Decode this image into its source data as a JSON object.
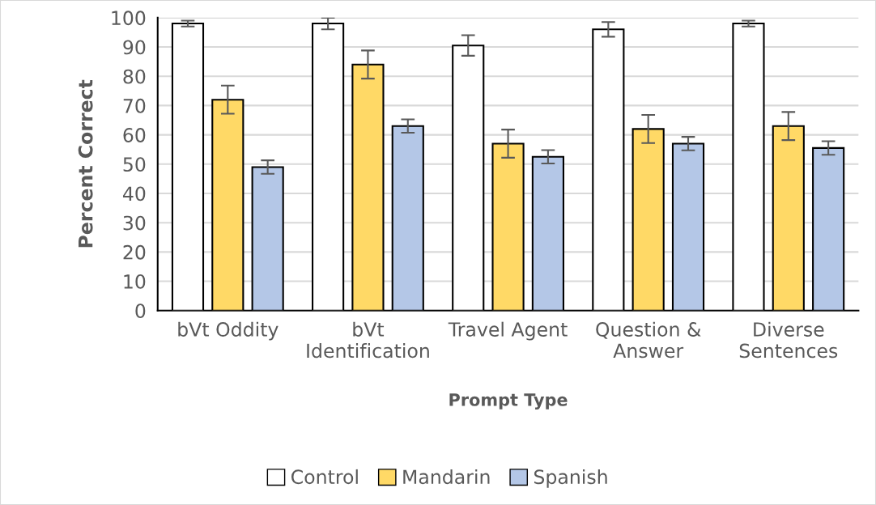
{
  "chart_data": {
    "type": "bar",
    "xlabel": "Prompt Type",
    "ylabel": "Percent Correct",
    "categories": [
      "bVt Oddity",
      "bVt\nIdentification",
      "Travel Agent",
      "Question &\nAnswer",
      "Diverse\nSentences"
    ],
    "series": [
      {
        "name": "Control",
        "color": "#ffffff",
        "values": [
          98,
          98,
          90.5,
          96,
          98
        ],
        "errors": [
          1,
          2,
          3.5,
          2.5,
          1
        ]
      },
      {
        "name": "Mandarin",
        "color": "#ffd966",
        "values": [
          72,
          84,
          57,
          62,
          63
        ],
        "errors": [
          4.8,
          4.8,
          4.8,
          4.8,
          4.8
        ]
      },
      {
        "name": "Spanish",
        "color": "#b4c7e7",
        "values": [
          49,
          63,
          52.5,
          57,
          55.5
        ],
        "errors": [
          2.3,
          2.3,
          2.3,
          2.3,
          2.3
        ]
      }
    ],
    "ylim": [
      0,
      100
    ],
    "yticks": [
      0,
      10,
      20,
      30,
      40,
      50,
      60,
      70,
      80,
      90,
      100
    ],
    "grid": "y",
    "legend": "bottom"
  }
}
